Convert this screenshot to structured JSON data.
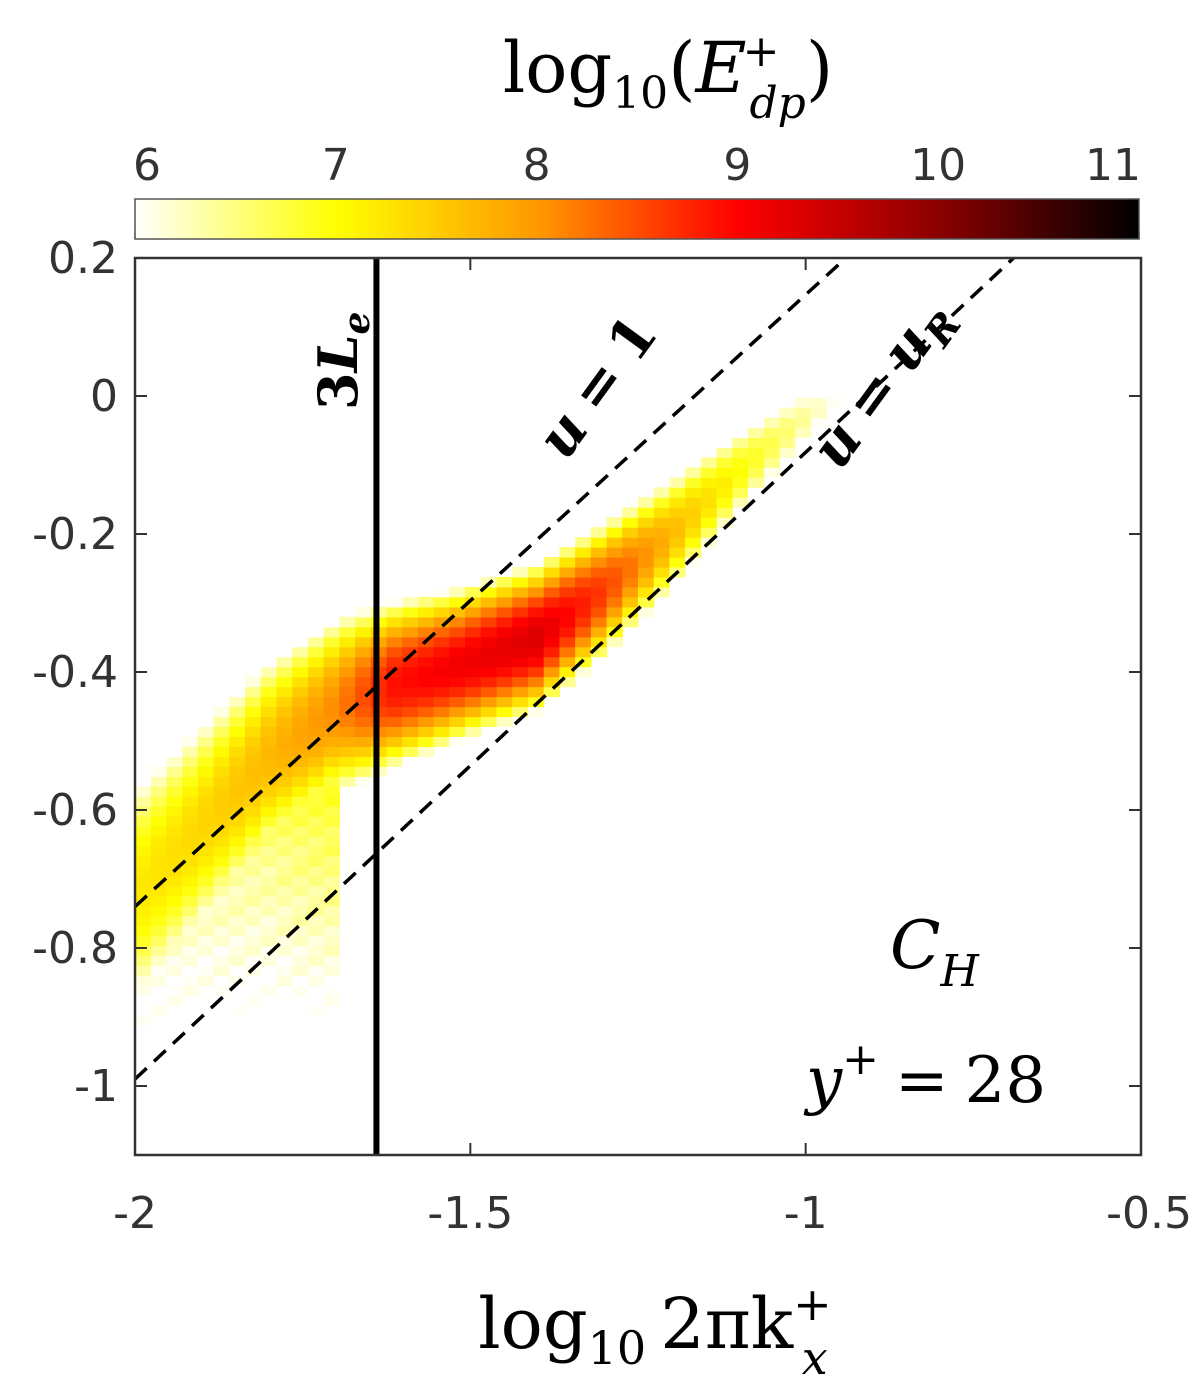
{
  "chart_data": {
    "type": "heatmap",
    "colorbar": {
      "label_base": "log",
      "label_sub": "10",
      "label_var": "E",
      "label_sup": "+",
      "label_varsub": "dp",
      "ticks": [
        "6",
        "7",
        "8",
        "9",
        "10",
        "11"
      ],
      "range": [
        6,
        11
      ],
      "placement": "top",
      "colormap": [
        "#ffffff",
        "#ffff00",
        "#ff9900",
        "#ff0000",
        "#8b0000",
        "#000000"
      ]
    },
    "xaxis": {
      "label_base": "log",
      "label_sub": "10",
      "label_rest": "2πk",
      "label_sup": "+",
      "label_varsub": "x",
      "ticks": [
        "-2",
        "-1.5",
        "-1",
        "-0.5"
      ],
      "tick_values": [
        -2,
        -1.5,
        -1,
        -0.5
      ],
      "range": [
        -2,
        -0.5
      ]
    },
    "yaxis": {
      "ticks": [
        "0.2",
        "0",
        "-0.2",
        "-0.4",
        "-0.6",
        "-0.8",
        "-1"
      ],
      "tick_values": [
        0.2,
        0,
        -0.2,
        -0.4,
        -0.6,
        -0.8,
        -1
      ],
      "range": [
        -1.1,
        0.2
      ]
    },
    "ridge": [
      {
        "x": -2.0,
        "y": -0.72,
        "w": 0.17,
        "p": 7.2
      },
      {
        "x": -1.9,
        "y": -0.62,
        "w": 0.15,
        "p": 7.4
      },
      {
        "x": -1.8,
        "y": -0.52,
        "w": 0.13,
        "p": 7.7
      },
      {
        "x": -1.7,
        "y": -0.45,
        "w": 0.11,
        "p": 8.1
      },
      {
        "x": -1.62,
        "y": -0.42,
        "w": 0.09,
        "p": 8.9
      },
      {
        "x": -1.52,
        "y": -0.39,
        "w": 0.08,
        "p": 9.1
      },
      {
        "x": -1.4,
        "y": -0.35,
        "w": 0.075,
        "p": 9.3
      },
      {
        "x": -1.3,
        "y": -0.28,
        "w": 0.075,
        "p": 8.6
      },
      {
        "x": -1.2,
        "y": -0.2,
        "w": 0.075,
        "p": 7.7
      },
      {
        "x": -1.1,
        "y": -0.11,
        "w": 0.07,
        "p": 7.0
      },
      {
        "x": -1.0,
        "y": -0.03,
        "w": 0.06,
        "p": 6.4
      },
      {
        "x": -0.95,
        "y": 0.0,
        "w": 0.05,
        "p": 6.0
      }
    ],
    "vertical_line": {
      "x": -1.64,
      "label_num": "3",
      "label_var": "L",
      "label_sub": "e"
    },
    "dashed_lines": [
      {
        "x0": -2.0,
        "y0": -0.74,
        "x1": -0.94,
        "y1": 0.2,
        "label_var": "u",
        "label_eq": "=",
        "label_val": "1"
      },
      {
        "x0": -2.0,
        "y0": -0.99,
        "x1": -0.69,
        "y1": 0.2,
        "label_var": "u",
        "label_eq": "=",
        "label_val": "u",
        "label_valsub": "R"
      }
    ],
    "annotations": {
      "case_var": "C",
      "case_sub": "H",
      "yplus_var": "y",
      "yplus_sup": "+",
      "yplus_eq": "=",
      "yplus_val": "28"
    }
  }
}
